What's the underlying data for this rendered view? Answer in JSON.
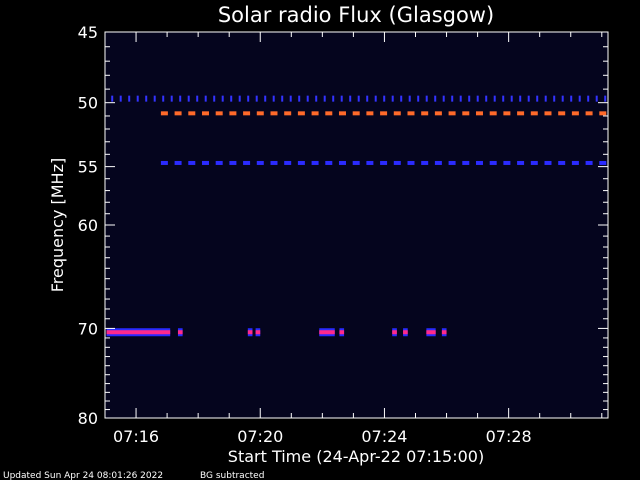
{
  "chart_data": {
    "type": "heatmap",
    "title": "Solar radio Flux (Glasgow)",
    "xlabel": "Start Time (24-Apr-22 07:15:00)",
    "ylabel": "Frequency [MHz]",
    "xlim_minutes": [
      15.0,
      31.2
    ],
    "ylim": [
      45,
      80
    ],
    "x_ticks": [
      {
        "minute": 16,
        "label": "07:16"
      },
      {
        "minute": 20,
        "label": "07:20"
      },
      {
        "minute": 24,
        "label": "07:24"
      },
      {
        "minute": 28,
        "label": "07:28"
      }
    ],
    "y_ticks": [
      45,
      50,
      55,
      60,
      70,
      80
    ],
    "bands": [
      {
        "frequency": 49.7,
        "color": "#3333ff",
        "pattern": "ticks",
        "start_minute": 15.2,
        "end_minute": 31.2
      },
      {
        "frequency": 50.8,
        "color": "#ff6a2a",
        "pattern": "dashed",
        "start_minute": 16.8,
        "end_minute": 31.2
      },
      {
        "frequency": 54.7,
        "color": "#2b2bff",
        "pattern": "dashed",
        "start_minute": 16.8,
        "end_minute": 31.2
      },
      {
        "frequency": 70.4,
        "color": "#ff2a8a",
        "pattern": "segments",
        "segments": [
          [
            15.05,
            17.1
          ],
          [
            17.35,
            17.5
          ],
          [
            19.6,
            19.75
          ],
          [
            19.85,
            20.0
          ],
          [
            21.9,
            22.4
          ],
          [
            22.55,
            22.7
          ],
          [
            24.25,
            24.4
          ],
          [
            24.6,
            24.75
          ],
          [
            25.35,
            25.65
          ],
          [
            25.85,
            26.0
          ]
        ]
      }
    ]
  },
  "footer": {
    "updated": "Updated Sun Apr 24 08:01:26 2022",
    "bg": "BG subtracted"
  },
  "colors": {
    "background": "#000000",
    "plot_background": "#05051e",
    "axis": "#ffffff"
  }
}
